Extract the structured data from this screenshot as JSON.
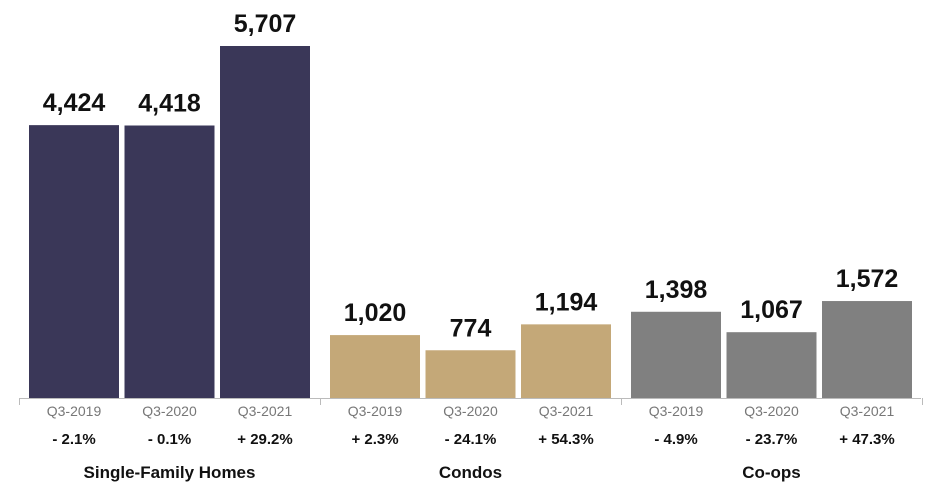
{
  "chart_data": {
    "type": "bar",
    "title": "",
    "xlabel": "",
    "ylabel": "",
    "ylim": [
      0,
      5707
    ],
    "grid": false,
    "legend": "none",
    "groups": [
      {
        "name": "Single-Family Homes",
        "color": "#3a3758",
        "bars": [
          {
            "period": "Q3-2019",
            "value": 4424,
            "label": "4,424",
            "change": "- 2.1%"
          },
          {
            "period": "Q3-2020",
            "value": 4418,
            "label": "4,418",
            "change": "- 0.1%"
          },
          {
            "period": "Q3-2021",
            "value": 5707,
            "label": "5,707",
            "change": "+ 29.2%"
          }
        ]
      },
      {
        "name": "Condos",
        "color": "#c4a878",
        "bars": [
          {
            "period": "Q3-2019",
            "value": 1020,
            "label": "1,020",
            "change": "+ 2.3%"
          },
          {
            "period": "Q3-2020",
            "value": 774,
            "label": "774",
            "change": "- 24.1%"
          },
          {
            "period": "Q3-2021",
            "value": 1194,
            "label": "1,194",
            "change": "+ 54.3%"
          }
        ]
      },
      {
        "name": "Co-ops",
        "color": "#808080",
        "bars": [
          {
            "period": "Q3-2019",
            "value": 1398,
            "label": "1,398",
            "change": "- 4.9%"
          },
          {
            "period": "Q3-2020",
            "value": 1067,
            "label": "1,067",
            "change": "- 23.7%"
          },
          {
            "period": "Q3-2021",
            "value": 1572,
            "label": "1,572",
            "change": "+ 47.3%"
          }
        ]
      }
    ]
  }
}
